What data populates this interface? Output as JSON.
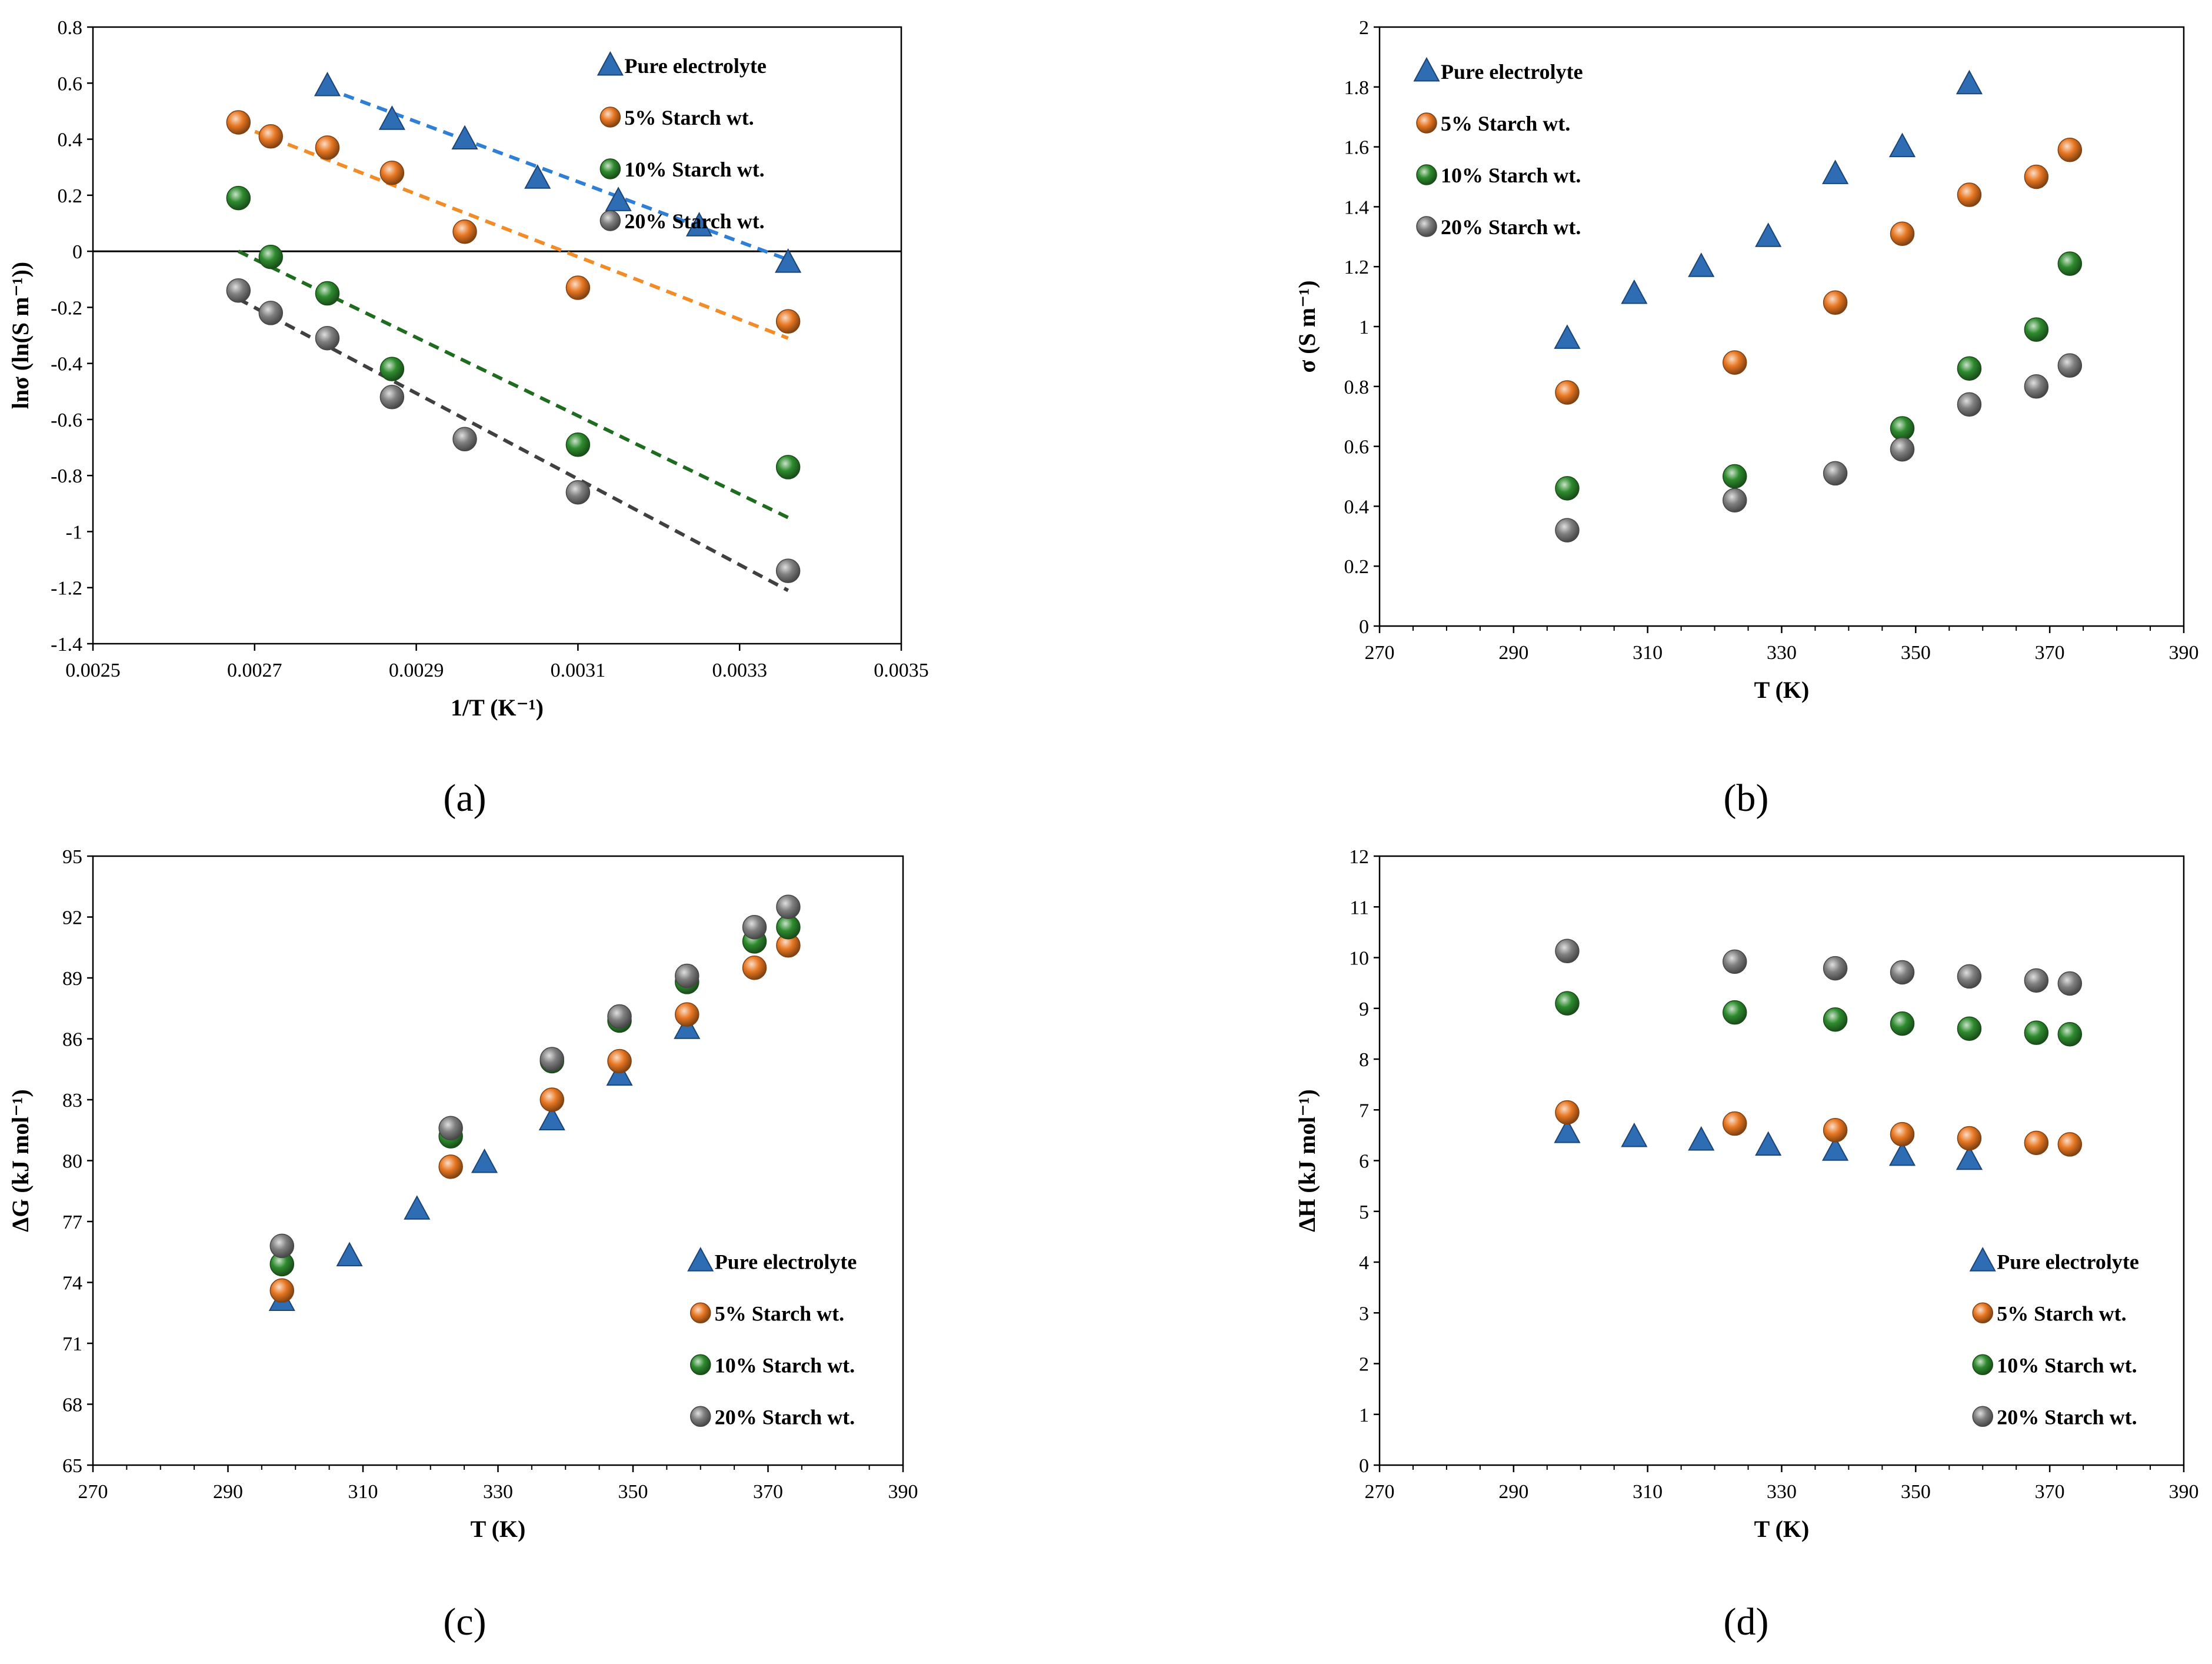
{
  "colors": {
    "pure": "#2e6db4",
    "s5": "#e87722",
    "s10": "#2e8b2e",
    "s20": "#7f7f7f",
    "fit_pure": "#2f7fd6",
    "fit_s5": "#f28c28",
    "fit_s10": "#1f6b1f",
    "fit_s20": "#404040"
  },
  "chart_data": [
    {
      "id": "a",
      "caption": "(a)",
      "type": "scatter",
      "xlabel": "1/T (K⁻¹)",
      "ylabel": "lnσ (ln(S m⁻¹))",
      "xlim": [
        0.0025,
        0.0035
      ],
      "ylim": [
        -1.4,
        0.8
      ],
      "xticks": [
        0.0025,
        0.0027,
        0.0029,
        0.0031,
        0.0033,
        0.0035
      ],
      "xtick_labels": [
        "0.0025",
        "0.0027",
        "0.0029",
        "0.0031",
        "0.0033",
        "0.0035"
      ],
      "yticks": [
        0.8,
        0.6,
        0.4,
        0.2,
        0,
        -0.2,
        -0.4,
        -0.6,
        -0.8,
        -1,
        -1.2,
        -1.4
      ],
      "ytick_labels": [
        "0.8",
        "0.6",
        "0.4",
        "0.2",
        "0",
        "-0.2",
        "-0.4",
        "-0.6",
        "-0.8",
        "-1",
        "-1.2",
        "-1.4"
      ],
      "xminor": 0,
      "x_axis_at_zero": true,
      "legend_position": "top-right",
      "series": [
        {
          "name": "Pure electrolyte",
          "key": "pure",
          "marker": "triangle",
          "x": [
            0.00279,
            0.00287,
            0.00296,
            0.00305,
            0.00315,
            0.00325,
            0.00336
          ],
          "y": [
            0.59,
            0.47,
            0.4,
            0.26,
            0.18,
            0.09,
            -0.04
          ],
          "fit": [
            [
              0.00279,
              0.58
            ],
            [
              0.00336,
              -0.03
            ]
          ]
        },
        {
          "name": "5% Starch wt.",
          "key": "s5",
          "marker": "sphere",
          "x": [
            0.00268,
            0.00272,
            0.00279,
            0.00287,
            0.00296,
            0.0031,
            0.00336
          ],
          "y": [
            0.46,
            0.41,
            0.37,
            0.28,
            0.07,
            -0.13,
            -0.25
          ],
          "fit": [
            [
              0.00268,
              0.45
            ],
            [
              0.00336,
              -0.31
            ]
          ]
        },
        {
          "name": "10% Starch wt.",
          "key": "s10",
          "marker": "sphere",
          "x": [
            0.00268,
            0.00272,
            0.00279,
            0.00287,
            0.0031,
            0.00336
          ],
          "y": [
            0.19,
            -0.02,
            -0.15,
            -0.42,
            -0.69,
            -0.77
          ],
          "fit": [
            [
              0.00268,
              0.0
            ],
            [
              0.00336,
              -0.95
            ]
          ]
        },
        {
          "name": "20% Starch wt.",
          "key": "s20",
          "marker": "sphere",
          "x": [
            0.00268,
            0.00272,
            0.00279,
            0.00287,
            0.00296,
            0.0031,
            0.00336
          ],
          "y": [
            -0.14,
            -0.22,
            -0.31,
            -0.52,
            -0.67,
            -0.86,
            -1.14
          ],
          "fit": [
            [
              0.00268,
              -0.17
            ],
            [
              0.00336,
              -1.21
            ]
          ]
        }
      ]
    },
    {
      "id": "b",
      "caption": "(b)",
      "type": "scatter",
      "xlabel": "T (K)",
      "ylabel": "σ (S m⁻¹)",
      "xlim": [
        270,
        390
      ],
      "ylim": [
        0,
        2
      ],
      "xticks": [
        270,
        290,
        310,
        330,
        350,
        370,
        390
      ],
      "xtick_labels": [
        "270",
        "290",
        "310",
        "330",
        "350",
        "370",
        "390"
      ],
      "yticks": [
        0,
        0.2,
        0.4,
        0.6,
        0.8,
        1,
        1.2,
        1.4,
        1.6,
        1.8,
        2
      ],
      "ytick_labels": [
        "0",
        "0.2",
        "0.4",
        "0.6",
        "0.8",
        "1",
        "1.2",
        "1.4",
        "1.6",
        "1.8",
        "2"
      ],
      "xminor": 1,
      "legend_position": "top-left",
      "series": [
        {
          "name": "Pure electrolyte",
          "key": "pure",
          "marker": "triangle",
          "x": [
            298,
            308,
            318,
            328,
            338,
            348,
            358
          ],
          "y": [
            0.96,
            1.11,
            1.2,
            1.3,
            1.51,
            1.6,
            1.81
          ]
        },
        {
          "name": "5% Starch wt.",
          "key": "s5",
          "marker": "sphere",
          "x": [
            298,
            323,
            338,
            348,
            358,
            368,
            373
          ],
          "y": [
            0.78,
            0.88,
            1.08,
            1.31,
            1.44,
            1.5,
            1.59
          ]
        },
        {
          "name": "10% Starch wt.",
          "key": "s10",
          "marker": "sphere",
          "x": [
            298,
            323,
            348,
            358,
            368,
            373
          ],
          "y": [
            0.46,
            0.5,
            0.66,
            0.86,
            0.99,
            1.21
          ]
        },
        {
          "name": "20% Starch wt.",
          "key": "s20",
          "marker": "sphere",
          "x": [
            298,
            323,
            338,
            348,
            358,
            368,
            373
          ],
          "y": [
            0.32,
            0.42,
            0.51,
            0.59,
            0.74,
            0.8,
            0.87
          ]
        }
      ]
    },
    {
      "id": "c",
      "caption": "(c)",
      "type": "scatter",
      "xlabel": "T (K)",
      "ylabel": "ΔG (kJ mol⁻¹)",
      "xlim": [
        270,
        390
      ],
      "ylim": [
        65,
        95
      ],
      "xticks": [
        270,
        290,
        310,
        330,
        350,
        370,
        390
      ],
      "xtick_labels": [
        "270",
        "290",
        "310",
        "330",
        "350",
        "370",
        "390"
      ],
      "yticks": [
        65,
        68,
        71,
        74,
        77,
        80,
        83,
        86,
        89,
        92,
        95
      ],
      "ytick_labels": [
        "65",
        "68",
        "71",
        "74",
        "77",
        "80",
        "83",
        "86",
        "89",
        "92",
        "95"
      ],
      "xminor": 1,
      "legend_position": "bottom-right",
      "series": [
        {
          "name": "Pure electrolyte",
          "key": "pure",
          "marker": "triangle",
          "x": [
            298,
            308,
            318,
            328,
            338,
            348,
            358
          ],
          "y": [
            73.1,
            75.3,
            77.6,
            79.9,
            82.0,
            84.2,
            86.5
          ]
        },
        {
          "name": "5% Starch wt.",
          "key": "s5",
          "marker": "sphere",
          "x": [
            298,
            323,
            338,
            348,
            358,
            368,
            373
          ],
          "y": [
            73.6,
            79.7,
            83.0,
            84.9,
            87.2,
            89.5,
            90.6
          ]
        },
        {
          "name": "10% Starch wt.",
          "key": "s10",
          "marker": "sphere",
          "x": [
            298,
            323,
            338,
            348,
            358,
            368,
            373
          ],
          "y": [
            74.9,
            81.2,
            84.9,
            86.9,
            88.8,
            90.8,
            91.5
          ]
        },
        {
          "name": "20% Starch wt.",
          "key": "s20",
          "marker": "sphere",
          "x": [
            298,
            323,
            338,
            348,
            358,
            368,
            373
          ],
          "y": [
            75.8,
            81.6,
            85.0,
            87.1,
            89.1,
            91.5,
            92.5
          ]
        }
      ]
    },
    {
      "id": "d",
      "caption": "(d)",
      "type": "scatter",
      "xlabel": "T (K)",
      "ylabel": "ΔH (kJ mol⁻¹)",
      "xlim": [
        270,
        390
      ],
      "ylim": [
        0,
        12
      ],
      "xticks": [
        270,
        290,
        310,
        330,
        350,
        370,
        390
      ],
      "xtick_labels": [
        "270",
        "290",
        "310",
        "330",
        "350",
        "370",
        "390"
      ],
      "yticks": [
        0,
        1,
        2,
        3,
        4,
        5,
        6,
        7,
        8,
        9,
        10,
        11,
        12
      ],
      "ytick_labels": [
        "0",
        "1",
        "2",
        "3",
        "4",
        "5",
        "6",
        "7",
        "8",
        "9",
        "10",
        "11",
        "12"
      ],
      "xminor": 1,
      "legend_position": "bottom-right",
      "series": [
        {
          "name": "Pure electrolyte",
          "key": "pure",
          "marker": "triangle",
          "x": [
            298,
            308,
            318,
            328,
            338,
            348,
            358
          ],
          "y": [
            6.55,
            6.47,
            6.4,
            6.3,
            6.2,
            6.1,
            6.02
          ]
        },
        {
          "name": "5% Starch wt.",
          "key": "s5",
          "marker": "sphere",
          "x": [
            298,
            323,
            338,
            348,
            358,
            368,
            373
          ],
          "y": [
            6.95,
            6.73,
            6.6,
            6.52,
            6.44,
            6.35,
            6.32
          ]
        },
        {
          "name": "10% Starch wt.",
          "key": "s10",
          "marker": "sphere",
          "x": [
            298,
            323,
            338,
            348,
            358,
            368,
            373
          ],
          "y": [
            9.1,
            8.92,
            8.78,
            8.7,
            8.6,
            8.52,
            8.49
          ]
        },
        {
          "name": "20% Starch wt.",
          "key": "s20",
          "marker": "sphere",
          "x": [
            298,
            323,
            338,
            348,
            358,
            368,
            373
          ],
          "y": [
            10.13,
            9.92,
            9.79,
            9.71,
            9.63,
            9.55,
            9.49
          ]
        }
      ]
    }
  ]
}
